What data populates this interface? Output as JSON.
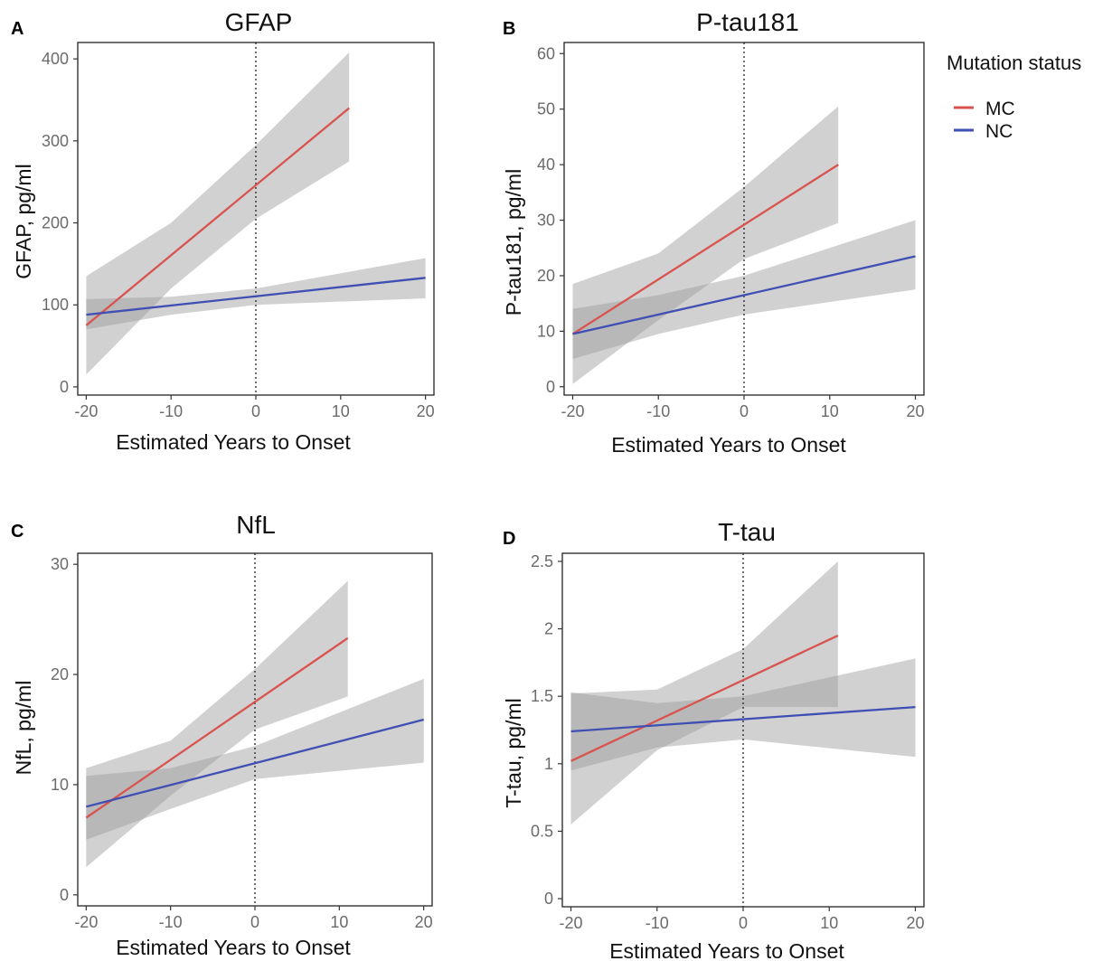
{
  "legend": {
    "title": "Mutation status",
    "items": [
      {
        "label": "MC",
        "color": "#d9534f"
      },
      {
        "label": "NC",
        "color": "#3f4fb3"
      }
    ]
  },
  "chart_data": [
    {
      "panel": "A",
      "type": "line",
      "title": "GFAP",
      "xlabel": "Estimated Years to Onset",
      "ylabel": "GFAP, pg/ml",
      "xlim": [
        -21,
        21
      ],
      "ylim": [
        -10,
        420
      ],
      "xticks": [
        "-20",
        "-10",
        "0",
        "10",
        "20"
      ],
      "yticks": [
        "0",
        "100",
        "200",
        "300",
        "400"
      ],
      "vline_x": 0,
      "series": [
        {
          "name": "MC",
          "color": "#d9534f",
          "x": [
            -20,
            11
          ],
          "y": [
            75,
            340
          ],
          "ci_lower": [
            {
              "x": -20,
              "y": 15
            },
            {
              "x": -10,
              "y": 120
            },
            {
              "x": 0,
              "y": 205
            },
            {
              "x": 11,
              "y": 275
            }
          ],
          "ci_upper": [
            {
              "x": -20,
              "y": 135
            },
            {
              "x": -10,
              "y": 200
            },
            {
              "x": 0,
              "y": 295
            },
            {
              "x": 11,
              "y": 408
            }
          ]
        },
        {
          "name": "NC",
          "color": "#3f4fb3",
          "x": [
            -20,
            20
          ],
          "y": [
            88,
            133
          ],
          "ci_lower": [
            {
              "x": -20,
              "y": 70
            },
            {
              "x": -10,
              "y": 88
            },
            {
              "x": 0,
              "y": 100
            },
            {
              "x": 20,
              "y": 108
            }
          ],
          "ci_upper": [
            {
              "x": -20,
              "y": 107
            },
            {
              "x": -10,
              "y": 110
            },
            {
              "x": 0,
              "y": 120
            },
            {
              "x": 20,
              "y": 157
            }
          ]
        }
      ]
    },
    {
      "panel": "B",
      "type": "line",
      "title": "P-tau181",
      "xlabel": "Estimated Years to Onset",
      "ylabel": "P-tau181, pg/ml",
      "xlim": [
        -21,
        21
      ],
      "ylim": [
        -1.5,
        62
      ],
      "xticks": [
        "-20",
        "-10",
        "0",
        "10",
        "20"
      ],
      "yticks": [
        "0",
        "10",
        "20",
        "30",
        "40",
        "50",
        "60"
      ],
      "vline_x": 0,
      "series": [
        {
          "name": "MC",
          "color": "#d9534f",
          "x": [
            -20,
            11
          ],
          "y": [
            9.5,
            40
          ],
          "ci_lower": [
            {
              "x": -20,
              "y": 0.5
            },
            {
              "x": -10,
              "y": 12
            },
            {
              "x": 0,
              "y": 23
            },
            {
              "x": 11,
              "y": 29.5
            }
          ],
          "ci_upper": [
            {
              "x": -20,
              "y": 18.5
            },
            {
              "x": -10,
              "y": 24
            },
            {
              "x": 0,
              "y": 36
            },
            {
              "x": 11,
              "y": 50.5
            }
          ]
        },
        {
          "name": "NC",
          "color": "#3f4fb3",
          "x": [
            -20,
            20
          ],
          "y": [
            9.5,
            23.5
          ],
          "ci_lower": [
            {
              "x": -20,
              "y": 5
            },
            {
              "x": -10,
              "y": 9.5
            },
            {
              "x": 0,
              "y": 13
            },
            {
              "x": 20,
              "y": 17.5
            }
          ],
          "ci_upper": [
            {
              "x": -20,
              "y": 14
            },
            {
              "x": -10,
              "y": 16.5
            },
            {
              "x": 0,
              "y": 20
            },
            {
              "x": 20,
              "y": 30
            }
          ]
        }
      ]
    },
    {
      "panel": "C",
      "type": "line",
      "title": "NfL",
      "xlabel": "Estimated Years to Onset",
      "ylabel": "NfL, pg/ml",
      "xlim": [
        -21,
        21
      ],
      "ylim": [
        -1,
        31
      ],
      "xticks": [
        "-20",
        "-10",
        "0",
        "10",
        "20"
      ],
      "yticks": [
        "0",
        "10",
        "20",
        "30"
      ],
      "vline_x": 0,
      "series": [
        {
          "name": "MC",
          "color": "#d9534f",
          "x": [
            -20,
            11
          ],
          "y": [
            7,
            23.3
          ],
          "ci_lower": [
            {
              "x": -20,
              "y": 2.5
            },
            {
              "x": -10,
              "y": 9
            },
            {
              "x": 0,
              "y": 15
            },
            {
              "x": 11,
              "y": 18
            }
          ],
          "ci_upper": [
            {
              "x": -20,
              "y": 11.5
            },
            {
              "x": -10,
              "y": 14
            },
            {
              "x": 0,
              "y": 20.5
            },
            {
              "x": 11,
              "y": 28.5
            }
          ]
        },
        {
          "name": "NC",
          "color": "#3f4fb3",
          "x": [
            -20,
            20
          ],
          "y": [
            8,
            15.9
          ],
          "ci_lower": [
            {
              "x": -20,
              "y": 5
            },
            {
              "x": -10,
              "y": 7.8
            },
            {
              "x": 0,
              "y": 10.5
            },
            {
              "x": 20,
              "y": 12
            }
          ],
          "ci_upper": [
            {
              "x": -20,
              "y": 10.8
            },
            {
              "x": -10,
              "y": 11.5
            },
            {
              "x": 0,
              "y": 13.5
            },
            {
              "x": 20,
              "y": 19.6
            }
          ]
        }
      ]
    },
    {
      "panel": "D",
      "type": "line",
      "title": "T-tau",
      "xlabel": "Estimated Years to Onset",
      "ylabel": "T-tau, pg/ml",
      "xlim": [
        -21,
        21
      ],
      "ylim": [
        -0.06,
        2.56
      ],
      "xticks": [
        "-20",
        "-10",
        "0",
        "10",
        "20"
      ],
      "yticks": [
        "0",
        "0.5",
        "1",
        "1.5",
        "2",
        "2.5"
      ],
      "vline_x": 0,
      "series": [
        {
          "name": "MC",
          "color": "#d9534f",
          "x": [
            -20,
            11
          ],
          "y": [
            1.02,
            1.95
          ],
          "ci_lower": [
            {
              "x": -20,
              "y": 0.55
            },
            {
              "x": -10,
              "y": 1.1
            },
            {
              "x": 0,
              "y": 1.42
            },
            {
              "x": 11,
              "y": 1.42
            }
          ],
          "ci_upper": [
            {
              "x": -20,
              "y": 1.52
            },
            {
              "x": -10,
              "y": 1.55
            },
            {
              "x": 0,
              "y": 1.85
            },
            {
              "x": 11,
              "y": 2.5
            }
          ]
        },
        {
          "name": "NC",
          "color": "#3f4fb3",
          "x": [
            -20,
            20
          ],
          "y": [
            1.24,
            1.42
          ],
          "ci_lower": [
            {
              "x": -20,
              "y": 0.95
            },
            {
              "x": -10,
              "y": 1.12
            },
            {
              "x": 0,
              "y": 1.18
            },
            {
              "x": 20,
              "y": 1.05
            }
          ],
          "ci_upper": [
            {
              "x": -20,
              "y": 1.53
            },
            {
              "x": -10,
              "y": 1.45
            },
            {
              "x": 0,
              "y": 1.5
            },
            {
              "x": 20,
              "y": 1.78
            }
          ]
        }
      ]
    }
  ]
}
